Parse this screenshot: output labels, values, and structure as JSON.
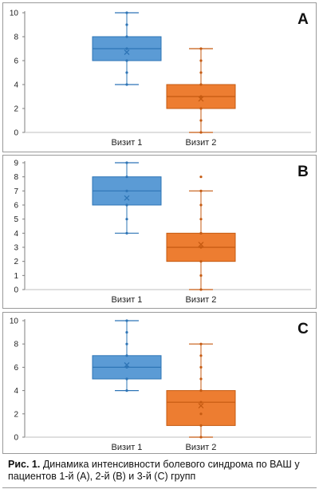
{
  "figure": {
    "caption_label": "Рис. 1.",
    "caption_text": " Динамика интенсивности болевого синдрома по ВАШ у пациентов 1-й (А), 2-й (В) и 3-й (С) групп"
  },
  "colors": {
    "visit1": "#5b9bd5",
    "visit1_edge": "#2e75b6",
    "visit2": "#ed7d31",
    "visit2_edge": "#c55a11"
  },
  "chart_data": [
    {
      "type": "box",
      "panel_label": "A",
      "categories": [
        "Визит 1",
        "Визит 2"
      ],
      "ylim": [
        0,
        10
      ],
      "yticks": [
        0,
        2,
        4,
        6,
        8,
        10
      ],
      "boxes": [
        {
          "name": "Визит 1",
          "min": 4,
          "q1": 6,
          "median": 7,
          "q3": 8,
          "max": 10,
          "mean": 6.7,
          "points": [
            4,
            5,
            6,
            7,
            8,
            9,
            10
          ]
        },
        {
          "name": "Визит 2",
          "min": 0,
          "q1": 2,
          "median": 3,
          "q3": 4,
          "max": 7,
          "mean": 2.8,
          "points": [
            0,
            1,
            2,
            3,
            4,
            5,
            6,
            7
          ]
        }
      ]
    },
    {
      "type": "box",
      "panel_label": "B",
      "categories": [
        "Визит 1",
        "Визит 2"
      ],
      "ylim": [
        0,
        9
      ],
      "yticks": [
        0,
        1,
        2,
        3,
        4,
        5,
        6,
        7,
        8,
        9
      ],
      "boxes": [
        {
          "name": "Визит 1",
          "min": 4,
          "q1": 6,
          "median": 7,
          "q3": 8,
          "max": 9,
          "mean": 6.5,
          "points": [
            4,
            5,
            6,
            7,
            8,
            9
          ]
        },
        {
          "name": "Визит 2",
          "min": 0,
          "q1": 2,
          "median": 3,
          "q3": 4,
          "max": 7,
          "mean": 3.2,
          "points": [
            0,
            1,
            2,
            3,
            4,
            5,
            6,
            7,
            8
          ]
        }
      ]
    },
    {
      "type": "box",
      "panel_label": "C",
      "categories": [
        "Визит 1",
        "Визит 2"
      ],
      "ylim": [
        0,
        10
      ],
      "yticks": [
        0,
        2,
        4,
        6,
        8,
        10
      ],
      "boxes": [
        {
          "name": "Визит 1",
          "min": 4,
          "q1": 5,
          "median": 6,
          "q3": 7,
          "max": 10,
          "mean": 6.2,
          "points": [
            4,
            5,
            6,
            7,
            8,
            9,
            10
          ]
        },
        {
          "name": "Визит 2",
          "min": 0,
          "q1": 1,
          "median": 3,
          "q3": 4,
          "max": 8,
          "mean": 2.7,
          "points": [
            0,
            1,
            2,
            3,
            4,
            5,
            6,
            7,
            8
          ]
        }
      ]
    }
  ]
}
